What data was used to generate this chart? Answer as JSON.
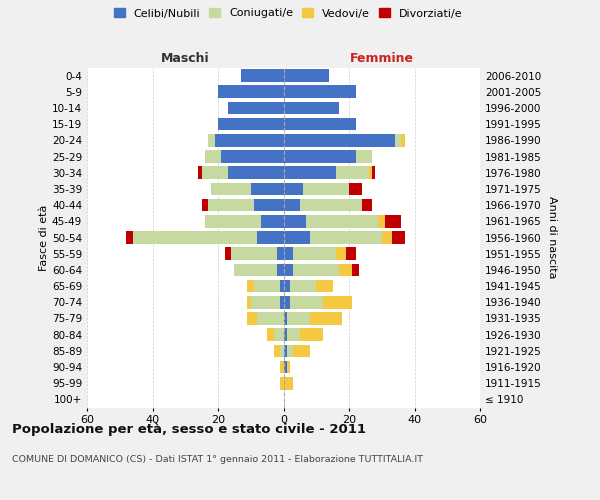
{
  "age_groups": [
    "100+",
    "95-99",
    "90-94",
    "85-89",
    "80-84",
    "75-79",
    "70-74",
    "65-69",
    "60-64",
    "55-59",
    "50-54",
    "45-49",
    "40-44",
    "35-39",
    "30-34",
    "25-29",
    "20-24",
    "15-19",
    "10-14",
    "5-9",
    "0-4"
  ],
  "birth_years": [
    "≤ 1910",
    "1911-1915",
    "1916-1920",
    "1921-1925",
    "1926-1930",
    "1931-1935",
    "1936-1940",
    "1941-1945",
    "1946-1950",
    "1951-1955",
    "1956-1960",
    "1961-1965",
    "1966-1970",
    "1971-1975",
    "1976-1980",
    "1981-1985",
    "1986-1990",
    "1991-1995",
    "1996-2000",
    "2001-2005",
    "2006-2010"
  ],
  "male": {
    "celibi": [
      0,
      0,
      0,
      0,
      0,
      0,
      1,
      1,
      2,
      2,
      8,
      7,
      9,
      10,
      17,
      19,
      21,
      20,
      17,
      20,
      13
    ],
    "coniugati": [
      0,
      0,
      0,
      1,
      3,
      8,
      9,
      8,
      13,
      14,
      38,
      17,
      14,
      12,
      8,
      5,
      2,
      0,
      0,
      0,
      0
    ],
    "vedovi": [
      0,
      1,
      1,
      2,
      2,
      3,
      1,
      2,
      0,
      0,
      0,
      0,
      0,
      0,
      0,
      0,
      0,
      0,
      0,
      0,
      0
    ],
    "divorziati": [
      0,
      0,
      0,
      0,
      0,
      0,
      0,
      0,
      0,
      2,
      2,
      0,
      2,
      0,
      1,
      0,
      0,
      0,
      0,
      0,
      0
    ]
  },
  "female": {
    "nubili": [
      0,
      0,
      1,
      1,
      1,
      1,
      2,
      2,
      3,
      3,
      8,
      7,
      5,
      6,
      16,
      22,
      34,
      22,
      17,
      22,
      14
    ],
    "coniugate": [
      0,
      0,
      0,
      2,
      4,
      7,
      10,
      8,
      14,
      13,
      22,
      22,
      19,
      14,
      10,
      5,
      2,
      0,
      0,
      0,
      0
    ],
    "vedove": [
      0,
      3,
      1,
      5,
      7,
      10,
      9,
      5,
      4,
      3,
      3,
      2,
      0,
      0,
      1,
      0,
      1,
      0,
      0,
      0,
      0
    ],
    "divorziate": [
      0,
      0,
      0,
      0,
      0,
      0,
      0,
      0,
      2,
      3,
      4,
      5,
      3,
      4,
      1,
      0,
      0,
      0,
      0,
      0,
      0
    ]
  },
  "xlim": 60,
  "title": "Popolazione per età, sesso e stato civile - 2011",
  "subtitle": "COMUNE DI DOMANICO (CS) - Dati ISTAT 1° gennaio 2011 - Elaborazione TUTTITALIA.IT",
  "col_celibi": "#4472C4",
  "col_coniugati": "#c5d9a0",
  "col_vedovi": "#f5c842",
  "col_divorziati": "#c00000",
  "bg_color": "#f0f0f0",
  "plot_bg": "#ffffff"
}
